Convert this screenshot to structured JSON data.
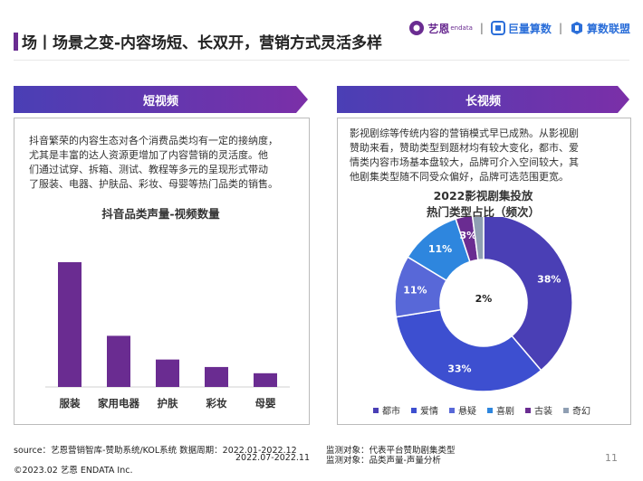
{
  "header": {
    "title": "场丨场景之变-内容场短、长双开，营销方式灵活多样",
    "logos": [
      {
        "name": "艺恩",
        "sub": "endata"
      },
      {
        "name": "巨量算数"
      },
      {
        "name": "算数联盟"
      }
    ]
  },
  "left_panel": {
    "heading": "短视频",
    "description_lines": [
      "抖音繁荣的内容生态对各个消费品类均有一定的接纳度，",
      "尤其是丰富的达人资源更增加了内容营销的灵活度。他",
      "们通过试穿、拆箱、测试、教程等多元的呈现形式带动",
      "了服装、电器、护肤品、彩妆、母婴等热门品类的销售。"
    ]
  },
  "right_panel": {
    "heading": "长视频",
    "description_lines": [
      "影视剧综等传统内容的营销模式早已成熟。从影视剧",
      "赞助来看，赞助类型到题材均有较大变化，都市、爱",
      "情类内容市场基本盘较大，品牌可介入空间较大，其",
      "他剧集类型随不同受众偏好，品牌可选范围更宽。"
    ]
  },
  "chart_data": [
    {
      "type": "bar",
      "title": "抖音品类声量-视频数量",
      "categories": [
        "服装",
        "家用电器",
        "护肤",
        "彩妆",
        "母婴"
      ],
      "values": [
        100,
        41,
        22,
        16,
        11
      ],
      "ylim": [
        0,
        100
      ],
      "color": "#6a2c91"
    },
    {
      "type": "pie",
      "title_lines": [
        "2022影视剧集投放",
        "热门类型占比（频次）"
      ],
      "labels": [
        "都市",
        "爱情",
        "悬疑",
        "喜剧",
        "古装",
        "奇幻"
      ],
      "values": [
        38,
        33,
        11,
        11,
        3,
        2
      ],
      "value_labels": [
        "38%",
        "33%",
        "11%",
        "11%",
        "3%",
        "2%"
      ],
      "colors": [
        "#4a3fb5",
        "#3d4fd0",
        "#5868d8",
        "#2e86de",
        "#6a2c91",
        "#8f9fb3"
      ],
      "legend": "bottom"
    }
  ],
  "footer": {
    "source_line1": "source：艺恩营销智库-赞助系统/KOL系统   数据周期：2022.01-2022.12",
    "source_line2": "2022.07-2022.11",
    "target_line1": "监测对象：代表平台赞助剧集类型",
    "target_line2": "监测对象：品类声量-声量分析",
    "copyright": "©2023.02 艺恩 ENDATA Inc.",
    "page": "11"
  }
}
